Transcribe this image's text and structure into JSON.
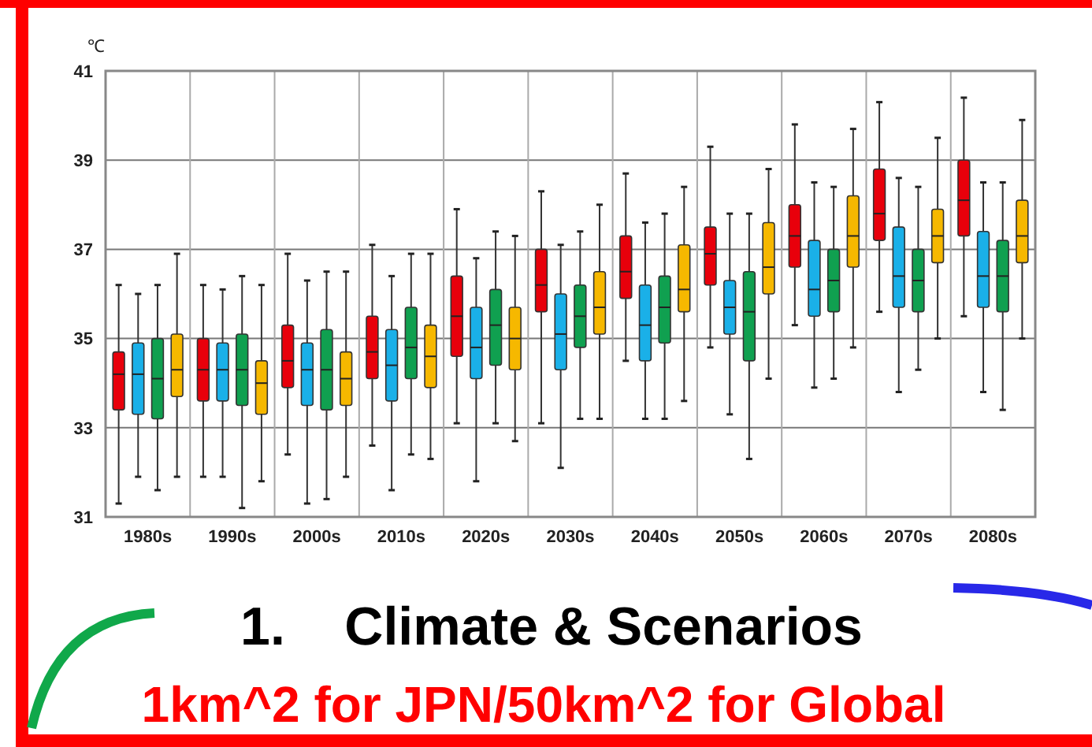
{
  "chart_data": {
    "type": "box",
    "title": "1.    Climate & Scenarios",
    "subtitle": "1km^2 for JPN/50km^2 for Global",
    "ylabel": "℃",
    "categories": [
      "1980s",
      "1990s",
      "2000s",
      "2010s",
      "2020s",
      "2030s",
      "2040s",
      "2050s",
      "2060s",
      "2070s",
      "2080s"
    ],
    "ylim": [
      31,
      41
    ],
    "yticks": [
      31,
      33,
      35,
      37,
      39,
      41
    ],
    "grid": true,
    "series": [
      {
        "color": "#e8000b",
        "boxes": [
          {
            "low": 31.3,
            "q1": 33.4,
            "median": 34.2,
            "q3": 34.7,
            "high": 36.2
          },
          {
            "low": 31.9,
            "q1": 33.6,
            "median": 34.3,
            "q3": 35.0,
            "high": 36.2
          },
          {
            "low": 32.4,
            "q1": 33.9,
            "median": 34.5,
            "q3": 35.3,
            "high": 36.9
          },
          {
            "low": 32.6,
            "q1": 34.1,
            "median": 34.7,
            "q3": 35.5,
            "high": 37.1
          },
          {
            "low": 33.1,
            "q1": 34.6,
            "median": 35.5,
            "q3": 36.4,
            "high": 37.9
          },
          {
            "low": 33.1,
            "q1": 35.6,
            "median": 36.2,
            "q3": 37.0,
            "high": 38.3
          },
          {
            "low": 34.5,
            "q1": 35.9,
            "median": 36.5,
            "q3": 37.3,
            "high": 38.7
          },
          {
            "low": 34.8,
            "q1": 36.2,
            "median": 36.9,
            "q3": 37.5,
            "high": 39.3
          },
          {
            "low": 35.3,
            "q1": 36.6,
            "median": 37.3,
            "q3": 38.0,
            "high": 39.8
          },
          {
            "low": 35.6,
            "q1": 37.2,
            "median": 37.8,
            "q3": 38.8,
            "high": 40.3
          },
          {
            "low": 35.5,
            "q1": 37.3,
            "median": 38.1,
            "q3": 39.0,
            "high": 40.4
          }
        ]
      },
      {
        "color": "#1ab0e8",
        "boxes": [
          {
            "low": 31.9,
            "q1": 33.3,
            "median": 34.2,
            "q3": 34.9,
            "high": 36.0
          },
          {
            "low": 31.9,
            "q1": 33.6,
            "median": 34.3,
            "q3": 34.9,
            "high": 36.1
          },
          {
            "low": 31.3,
            "q1": 33.5,
            "median": 34.3,
            "q3": 34.9,
            "high": 36.3
          },
          {
            "low": 31.6,
            "q1": 33.6,
            "median": 34.4,
            "q3": 35.2,
            "high": 36.4
          },
          {
            "low": 31.8,
            "q1": 34.1,
            "median": 34.8,
            "q3": 35.7,
            "high": 36.8
          },
          {
            "low": 32.1,
            "q1": 34.3,
            "median": 35.1,
            "q3": 36.0,
            "high": 37.1
          },
          {
            "low": 33.2,
            "q1": 34.5,
            "median": 35.3,
            "q3": 36.2,
            "high": 37.6
          },
          {
            "low": 33.3,
            "q1": 35.1,
            "median": 35.7,
            "q3": 36.3,
            "high": 37.8
          },
          {
            "low": 33.9,
            "q1": 35.5,
            "median": 36.1,
            "q3": 37.2,
            "high": 38.5
          },
          {
            "low": 33.8,
            "q1": 35.7,
            "median": 36.4,
            "q3": 37.5,
            "high": 38.6
          },
          {
            "low": 33.8,
            "q1": 35.7,
            "median": 36.4,
            "q3": 37.4,
            "high": 38.5
          }
        ]
      },
      {
        "color": "#10a050",
        "boxes": [
          {
            "low": 31.6,
            "q1": 33.2,
            "median": 34.1,
            "q3": 35.0,
            "high": 36.2
          },
          {
            "low": 31.2,
            "q1": 33.5,
            "median": 34.3,
            "q3": 35.1,
            "high": 36.4
          },
          {
            "low": 31.4,
            "q1": 33.4,
            "median": 34.3,
            "q3": 35.2,
            "high": 36.5
          },
          {
            "low": 32.4,
            "q1": 34.1,
            "median": 34.8,
            "q3": 35.7,
            "high": 36.9
          },
          {
            "low": 33.1,
            "q1": 34.4,
            "median": 35.3,
            "q3": 36.1,
            "high": 37.4
          },
          {
            "low": 33.2,
            "q1": 34.8,
            "median": 35.5,
            "q3": 36.2,
            "high": 37.4
          },
          {
            "low": 33.2,
            "q1": 34.9,
            "median": 35.7,
            "q3": 36.4,
            "high": 37.8
          },
          {
            "low": 32.3,
            "q1": 34.5,
            "median": 35.6,
            "q3": 36.5,
            "high": 37.8
          },
          {
            "low": 34.1,
            "q1": 35.6,
            "median": 36.3,
            "q3": 37.0,
            "high": 38.4
          },
          {
            "low": 34.3,
            "q1": 35.6,
            "median": 36.3,
            "q3": 37.0,
            "high": 38.4
          },
          {
            "low": 33.4,
            "q1": 35.6,
            "median": 36.4,
            "q3": 37.2,
            "high": 38.5
          }
        ]
      },
      {
        "color": "#f6b800",
        "boxes": [
          {
            "low": 31.9,
            "q1": 33.7,
            "median": 34.3,
            "q3": 35.1,
            "high": 36.9
          },
          {
            "low": 31.8,
            "q1": 33.3,
            "median": 34.0,
            "q3": 34.5,
            "high": 36.2
          },
          {
            "low": 31.9,
            "q1": 33.5,
            "median": 34.1,
            "q3": 34.7,
            "high": 36.5
          },
          {
            "low": 32.3,
            "q1": 33.9,
            "median": 34.6,
            "q3": 35.3,
            "high": 36.9
          },
          {
            "low": 32.7,
            "q1": 34.3,
            "median": 35.0,
            "q3": 35.7,
            "high": 37.3
          },
          {
            "low": 33.2,
            "q1": 35.1,
            "median": 35.7,
            "q3": 36.5,
            "high": 38.0
          },
          {
            "low": 33.6,
            "q1": 35.6,
            "median": 36.1,
            "q3": 37.1,
            "high": 38.4
          },
          {
            "low": 34.1,
            "q1": 36.0,
            "median": 36.6,
            "q3": 37.6,
            "high": 38.8
          },
          {
            "low": 34.8,
            "q1": 36.6,
            "median": 37.3,
            "q3": 38.2,
            "high": 39.7
          },
          {
            "low": 35.0,
            "q1": 36.7,
            "median": 37.3,
            "q3": 37.9,
            "high": 39.5
          },
          {
            "low": 35.0,
            "q1": 36.7,
            "median": 37.3,
            "q3": 38.1,
            "high": 39.9
          }
        ]
      }
    ]
  }
}
